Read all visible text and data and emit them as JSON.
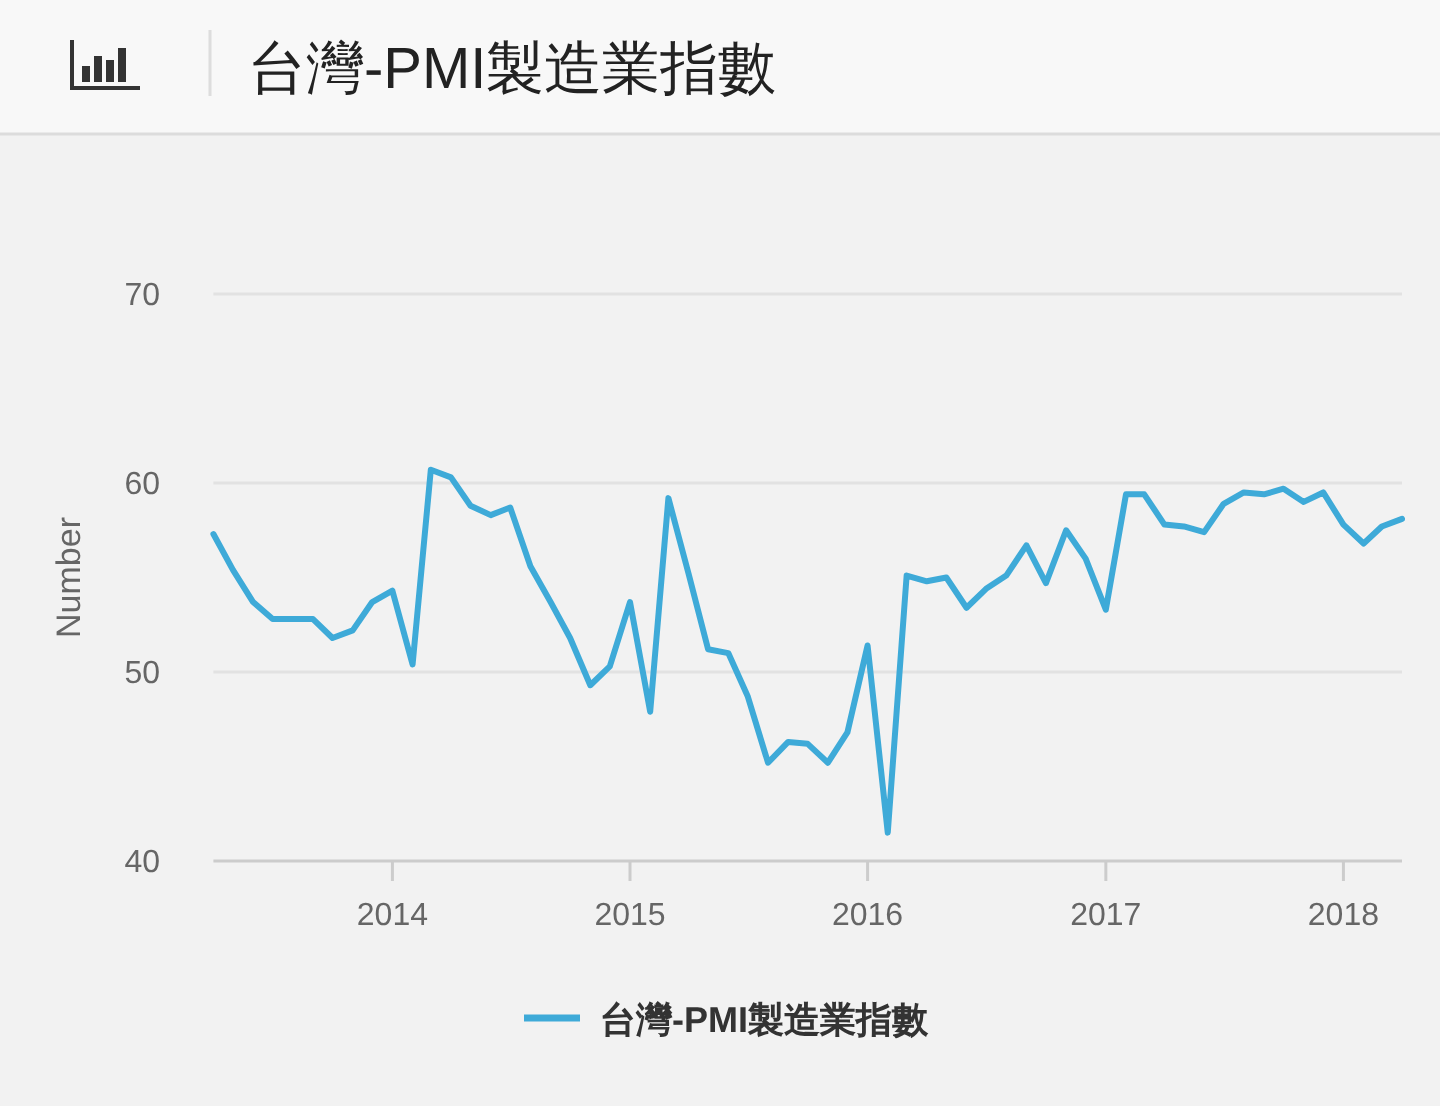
{
  "chart_data": {
    "type": "line",
    "title": "台灣-PMI製造業指數",
    "ylabel": "Number",
    "x": [
      "2013-04",
      "2013-05",
      "2013-06",
      "2013-07",
      "2013-08",
      "2013-09",
      "2013-10",
      "2013-11",
      "2013-12",
      "2014-01",
      "2014-02",
      "2014-03",
      "2014-04",
      "2014-05",
      "2014-06",
      "2014-07",
      "2014-08",
      "2014-09",
      "2014-10",
      "2014-11",
      "2014-12",
      "2015-01",
      "2015-02",
      "2015-03",
      "2015-04",
      "2015-05",
      "2015-06",
      "2015-07",
      "2015-08",
      "2015-09",
      "2015-10",
      "2015-11",
      "2015-12",
      "2016-01",
      "2016-02",
      "2016-03",
      "2016-04",
      "2016-05",
      "2016-06",
      "2016-07",
      "2016-08",
      "2016-09",
      "2016-10",
      "2016-11",
      "2016-12",
      "2017-01",
      "2017-02",
      "2017-03",
      "2017-04",
      "2017-05",
      "2017-06",
      "2017-07",
      "2017-08",
      "2017-09",
      "2017-10",
      "2017-11",
      "2017-12",
      "2018-01",
      "2018-02",
      "2018-03",
      "2018-04"
    ],
    "series": [
      {
        "name": "台灣-PMI製造業指數",
        "color": "#3eaad8",
        "values": [
          57.3,
          55.4,
          53.7,
          52.8,
          52.8,
          52.8,
          51.8,
          52.2,
          53.7,
          54.3,
          50.4,
          60.7,
          60.3,
          58.8,
          58.3,
          58.7,
          55.6,
          53.7,
          51.8,
          49.3,
          50.3,
          53.7,
          47.9,
          59.2,
          55.2,
          51.2,
          51.0,
          48.7,
          45.2,
          46.3,
          46.2,
          45.2,
          46.8,
          51.4,
          41.5,
          55.1,
          54.8,
          55.0,
          53.4,
          54.4,
          55.1,
          56.7,
          54.7,
          57.5,
          56.0,
          53.3,
          59.4,
          59.4,
          57.8,
          57.7,
          57.4,
          58.9,
          59.5,
          59.4,
          59.7,
          59.0,
          59.5,
          57.8,
          56.8,
          57.7,
          58.1
        ]
      }
    ],
    "xlim": [
      "2013-04",
      "2018-04"
    ],
    "xticks": [
      "2014",
      "2015",
      "2016",
      "2017",
      "2018"
    ],
    "ylim": [
      40,
      70
    ],
    "yticks": [
      40,
      50,
      60,
      70
    ],
    "grid": "y",
    "legend": "bottom"
  }
}
